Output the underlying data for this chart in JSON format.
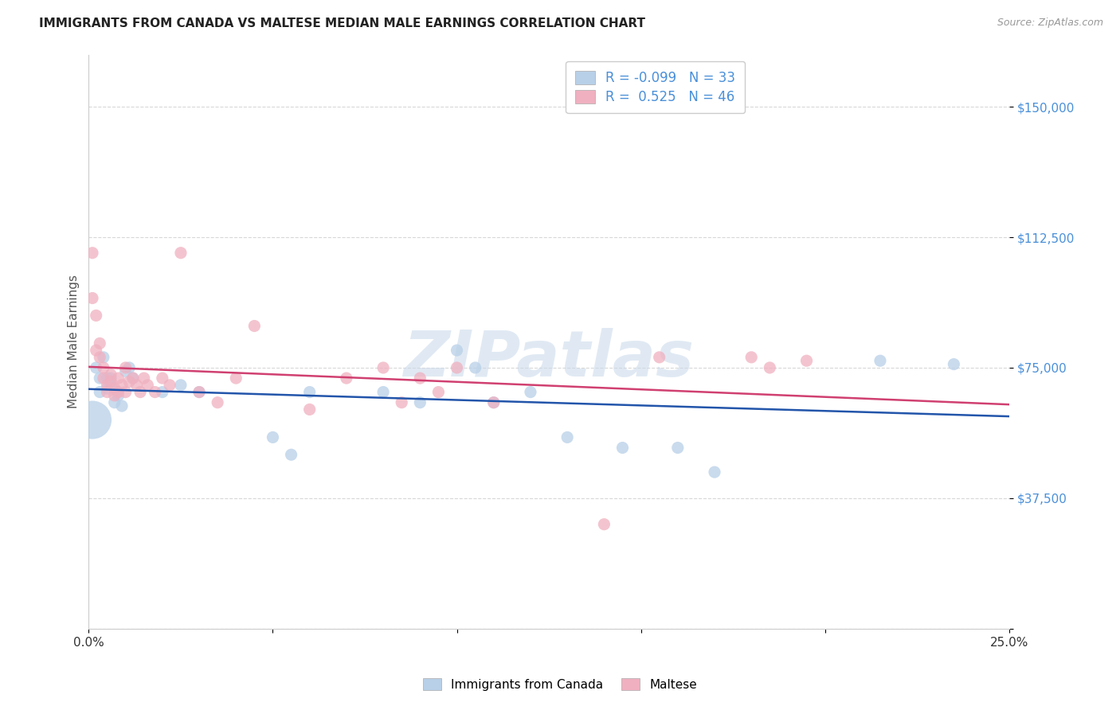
{
  "title": "IMMIGRANTS FROM CANADA VS MALTESE MEDIAN MALE EARNINGS CORRELATION CHART",
  "source": "Source: ZipAtlas.com",
  "ylabel": "Median Male Earnings",
  "xlim": [
    0.0,
    0.25
  ],
  "ylim": [
    0,
    165000
  ],
  "yticks": [
    0,
    37500,
    75000,
    112500,
    150000
  ],
  "ytick_labels": [
    "",
    "$37,500",
    "$75,000",
    "$112,500",
    "$150,000"
  ],
  "xticks": [
    0.0,
    0.05,
    0.1,
    0.15,
    0.2,
    0.25
  ],
  "xtick_labels": [
    "0.0%",
    "",
    "",
    "",
    "",
    "25.0%"
  ],
  "background_color": "#ffffff",
  "grid_color": "#d8d8d8",
  "watermark": "ZIPatlas",
  "blue_series": {
    "label": "Immigrants from Canada",
    "R": -0.099,
    "N": 33,
    "color": "#b8d0e8",
    "line_color": "#2255aa",
    "x": [
      0.001,
      0.002,
      0.003,
      0.003,
      0.004,
      0.005,
      0.005,
      0.006,
      0.006,
      0.007,
      0.008,
      0.009,
      0.01,
      0.011,
      0.012,
      0.02,
      0.025,
      0.03,
      0.05,
      0.055,
      0.06,
      0.08,
      0.09,
      0.1,
      0.105,
      0.11,
      0.12,
      0.13,
      0.145,
      0.16,
      0.17,
      0.215,
      0.235
    ],
    "y": [
      60000,
      75000,
      72000,
      68000,
      78000,
      72000,
      69000,
      70000,
      72000,
      65000,
      67000,
      64000,
      74000,
      75000,
      72000,
      68000,
      70000,
      68000,
      55000,
      50000,
      68000,
      68000,
      65000,
      80000,
      75000,
      65000,
      68000,
      55000,
      52000,
      52000,
      45000,
      77000,
      76000
    ],
    "dot_size": 120,
    "big_dot_idx": 0,
    "big_dot_size": 1200
  },
  "pink_series": {
    "label": "Maltese",
    "R": 0.525,
    "N": 46,
    "color": "#f0b0c0",
    "line_color": "#d04070",
    "x": [
      0.001,
      0.001,
      0.002,
      0.002,
      0.003,
      0.003,
      0.004,
      0.004,
      0.005,
      0.005,
      0.006,
      0.006,
      0.007,
      0.007,
      0.008,
      0.008,
      0.009,
      0.01,
      0.01,
      0.011,
      0.012,
      0.013,
      0.014,
      0.015,
      0.016,
      0.018,
      0.02,
      0.022,
      0.025,
      0.03,
      0.035,
      0.04,
      0.045,
      0.06,
      0.07,
      0.08,
      0.085,
      0.09,
      0.095,
      0.1,
      0.11,
      0.14,
      0.155,
      0.18,
      0.185,
      0.195
    ],
    "y": [
      108000,
      95000,
      90000,
      80000,
      78000,
      82000,
      72000,
      75000,
      70000,
      68000,
      73000,
      71000,
      69000,
      67000,
      72000,
      68000,
      70000,
      68000,
      75000,
      71000,
      72000,
      70000,
      68000,
      72000,
      70000,
      68000,
      72000,
      70000,
      108000,
      68000,
      65000,
      72000,
      87000,
      63000,
      72000,
      75000,
      65000,
      72000,
      68000,
      75000,
      65000,
      30000,
      78000,
      78000,
      75000,
      77000
    ],
    "dot_size": 120
  },
  "legend_R_N": {
    "blue_R": "-0.099",
    "blue_N": "33",
    "pink_R": "0.525",
    "pink_N": "46"
  }
}
